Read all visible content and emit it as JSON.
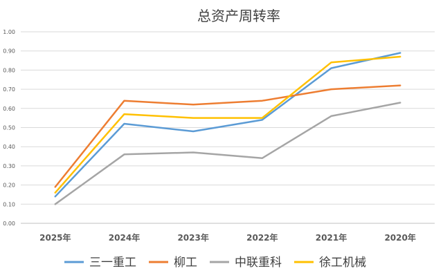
{
  "chart_data": {
    "type": "line",
    "title": "总资产周转率",
    "categories": [
      "2025年",
      "2024年",
      "2023年",
      "2022年",
      "2021年",
      "2020年"
    ],
    "ylim": [
      0,
      1.0
    ],
    "yticks": [
      "0.00",
      "0.10",
      "0.20",
      "0.30",
      "0.40",
      "0.50",
      "0.60",
      "0.70",
      "0.80",
      "0.90",
      "1.00"
    ],
    "grid": true,
    "legend_position": "bottom",
    "series": [
      {
        "name": "三一重工",
        "color": "#5b9bd5",
        "values": [
          0.14,
          0.52,
          0.48,
          0.54,
          0.81,
          0.89
        ]
      },
      {
        "name": "柳工",
        "color": "#ed7d31",
        "values": [
          0.19,
          0.64,
          0.62,
          0.64,
          0.7,
          0.72
        ]
      },
      {
        "name": "中联重科",
        "color": "#a5a5a5",
        "values": [
          0.1,
          0.36,
          0.37,
          0.34,
          0.56,
          0.63
        ]
      },
      {
        "name": "徐工机械",
        "color": "#ffc000",
        "values": [
          0.16,
          0.57,
          0.55,
          0.55,
          0.84,
          0.87
        ]
      }
    ]
  }
}
